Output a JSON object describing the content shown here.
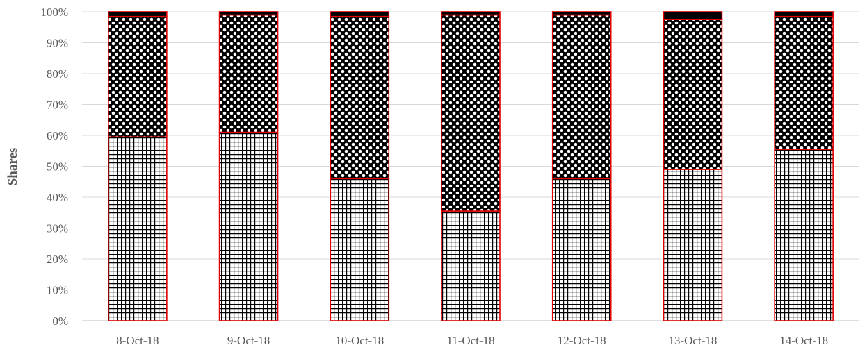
{
  "chart_data": {
    "type": "bar",
    "stacked": "percent",
    "title": "",
    "xlabel": "",
    "ylabel": "Shares",
    "ylim": [
      0,
      100
    ],
    "y_ticks": [
      "0%",
      "10%",
      "20%",
      "30%",
      "40%",
      "50%",
      "60%",
      "70%",
      "80%",
      "90%",
      "100%"
    ],
    "categories": [
      "8-Oct-18",
      "9-Oct-18",
      "10-Oct-18",
      "11-Oct-18",
      "12-Oct-18",
      "13-Oct-18",
      "14-Oct-18"
    ],
    "series": [
      {
        "pattern": "grid",
        "color": "#000000",
        "values": [
          59.5,
          61,
          46,
          35.5,
          46,
          49,
          55.5
        ]
      },
      {
        "pattern": "dots",
        "color": "#000000",
        "values": [
          39,
          38,
          52.5,
          63.5,
          53,
          48.5,
          43
        ]
      },
      {
        "pattern": "solid",
        "color": "#000000",
        "values": [
          1.5,
          1,
          1.5,
          1,
          1,
          2.5,
          1.5
        ]
      }
    ],
    "bar_outline_color": "#e00000",
    "grid": true,
    "legend": "none"
  }
}
